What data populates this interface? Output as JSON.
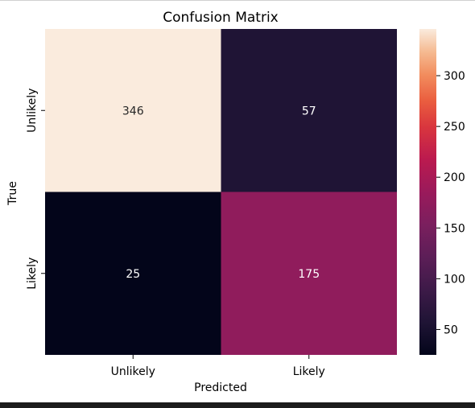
{
  "chart_data": {
    "type": "heatmap",
    "title": "Confusion Matrix",
    "xlabel": "Predicted",
    "ylabel": "True",
    "x_categories": [
      "Unlikely",
      "Likely"
    ],
    "y_categories": [
      "Unlikely",
      "Likely"
    ],
    "values": [
      [
        346,
        57
      ],
      [
        25,
        175
      ]
    ],
    "colorbar": {
      "min": 25,
      "max": 346,
      "ticks": [
        50,
        100,
        150,
        200,
        250,
        300
      ],
      "colormap": "rocket"
    }
  }
}
